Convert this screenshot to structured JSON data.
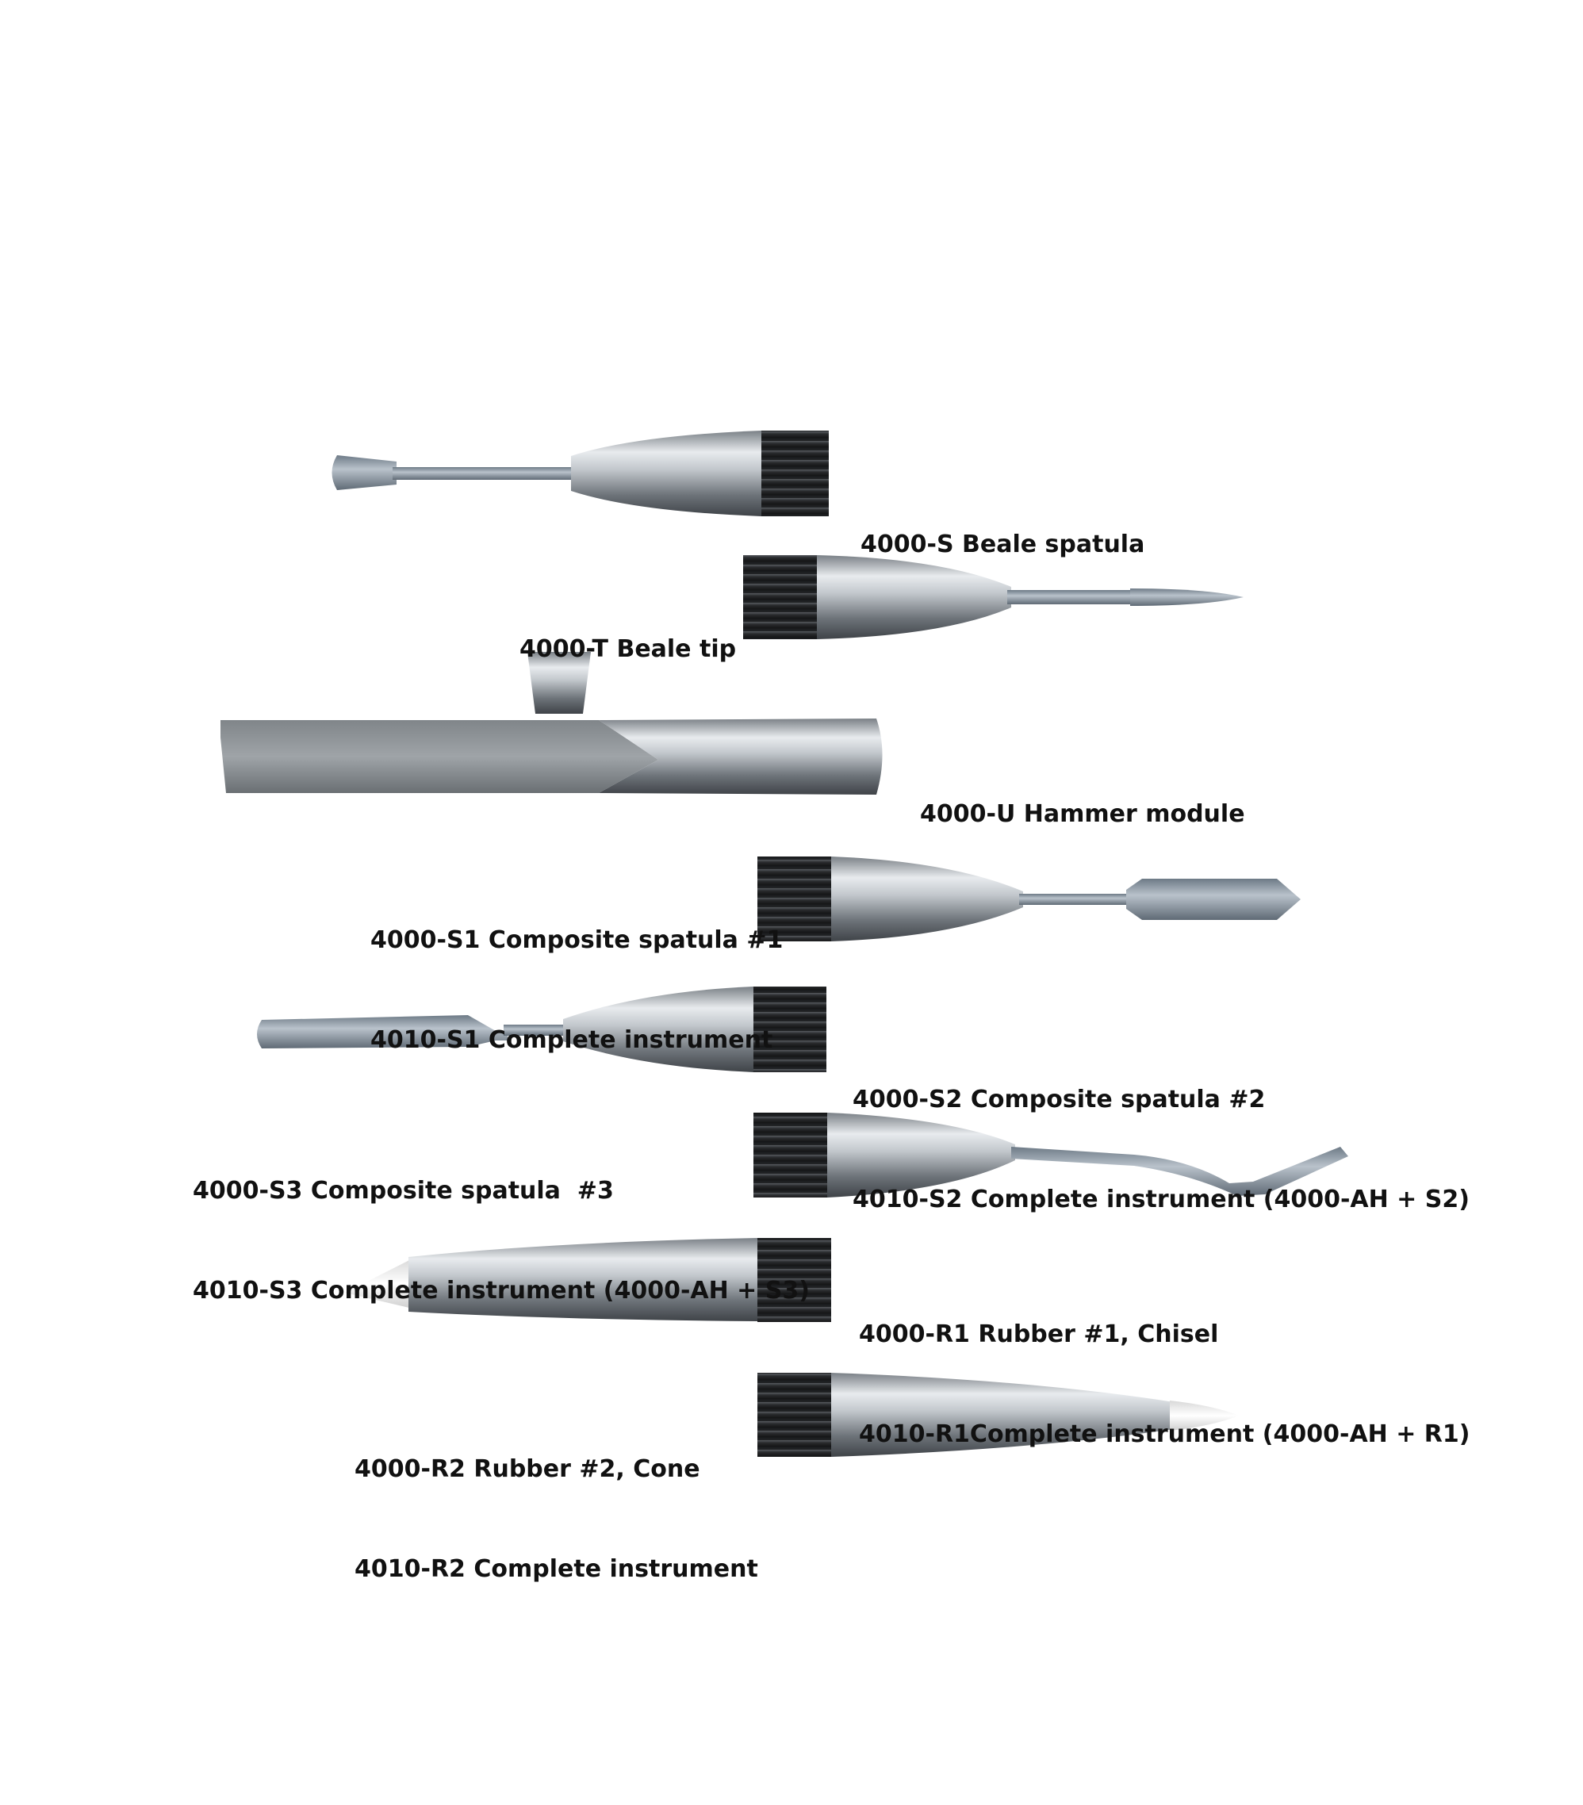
{
  "products": [
    {
      "id": "s",
      "lines": [
        "4000-S Beale spatula"
      ]
    },
    {
      "id": "t",
      "lines": [
        "4000-T Beale tip"
      ]
    },
    {
      "id": "u",
      "lines": [
        "4000-U Hammer module"
      ]
    },
    {
      "id": "s1",
      "lines": [
        "4000-S1 Composite spatula #1",
        "4010-S1 Complete instrument"
      ]
    },
    {
      "id": "s2",
      "lines": [
        "4000-S2 Composite spatula #2",
        "4010-S2 Complete instrument (4000-AH + S2)"
      ]
    },
    {
      "id": "s3",
      "lines": [
        "4000-S3 Composite spatula  #3",
        "4010-S3 Complete instrument (4000-AH + S3)"
      ]
    },
    {
      "id": "r1",
      "lines": [
        "4000-R1 Rubber #1, Chisel",
        "4010-R1Complete instrument (4000-AH + R1)"
      ]
    },
    {
      "id": "r2",
      "lines": [
        "4000-R2 Rubber #2, Cone",
        "4010-R2 Complete instrument"
      ]
    }
  ],
  "colors": {
    "background": "#ffffff",
    "steel_light": "#e6e9ec",
    "steel_mid": "#9ea4aa",
    "steel_dark": "#5b6066",
    "grip_dark": "#1e1f21",
    "grip_groove": "#4a4c50",
    "rubber": "#f4f4f4",
    "text": "#111111"
  }
}
